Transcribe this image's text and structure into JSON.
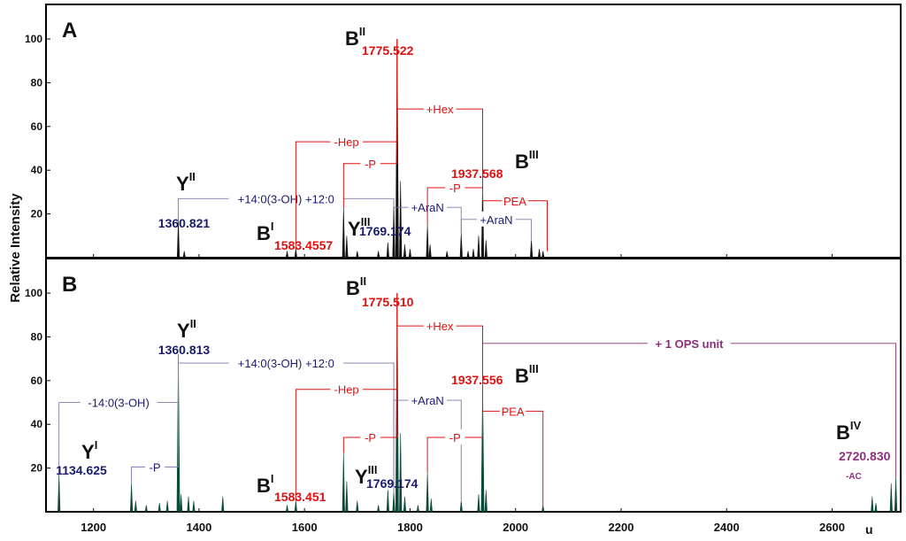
{
  "colors": {
    "navy": "#1a1a6e",
    "red": "#e01010",
    "purple": "#8b2f7a",
    "black": "#111111",
    "green": "#0b4a3a",
    "orange": "#e8792e",
    "bracket_blue": "#7a7ab0"
  },
  "chart_data": [
    {
      "type": "line",
      "panel_label": "A",
      "ylabel": "Relative Intensity",
      "xlabel": "u",
      "xlim": [
        1110,
        2730
      ],
      "ylim": [
        0,
        115
      ],
      "x_ticks": [
        1200,
        1400,
        1600,
        1800,
        2000,
        2200,
        2400,
        2600
      ],
      "y_ticks": [
        20,
        40,
        60,
        80,
        100
      ],
      "peaks": [
        {
          "x": 1360.8,
          "y": 17
        },
        {
          "x": 1372,
          "y": 3
        },
        {
          "x": 1567,
          "y": 3
        },
        {
          "x": 1583.5,
          "y": 4
        },
        {
          "x": 1674,
          "y": 23
        },
        {
          "x": 1680,
          "y": 10
        },
        {
          "x": 1700,
          "y": 3
        },
        {
          "x": 1740,
          "y": 3
        },
        {
          "x": 1758,
          "y": 7
        },
        {
          "x": 1769.2,
          "y": 24
        },
        {
          "x": 1775.5,
          "y": 100
        },
        {
          "x": 1782,
          "y": 35
        },
        {
          "x": 1790,
          "y": 6
        },
        {
          "x": 1800,
          "y": 4
        },
        {
          "x": 1833,
          "y": 15
        },
        {
          "x": 1838,
          "y": 6
        },
        {
          "x": 1870,
          "y": 3
        },
        {
          "x": 1897,
          "y": 11
        },
        {
          "x": 1910,
          "y": 3
        },
        {
          "x": 1920,
          "y": 4
        },
        {
          "x": 1930,
          "y": 10
        },
        {
          "x": 1937.6,
          "y": 35
        },
        {
          "x": 1944,
          "y": 8
        },
        {
          "x": 2030,
          "y": 8
        },
        {
          "x": 2045,
          "y": 4
        },
        {
          "x": 2052,
          "y": 3
        }
      ],
      "peak_labels": [
        {
          "ion": "Y",
          "sup": "II",
          "sub": "",
          "mz": "1360.821"
        },
        {
          "ion": "B",
          "sup": "I",
          "sub": "",
          "mz": "1583.4557"
        },
        {
          "ion": "Y",
          "sup": "III",
          "sub": "",
          "mz": "1769.174"
        },
        {
          "ion": "B",
          "sup": "II",
          "sub": "",
          "mz": "1775.522"
        },
        {
          "ion": "B",
          "sup": "III",
          "sub": "",
          "mz": "1937.568"
        }
      ],
      "brackets": [
        {
          "label": "+14:0(3-OH) +12:0",
          "x1": 1360.8,
          "x2": 1769.2,
          "y": 27,
          "drop1": 17,
          "drop2": 24,
          "color": "navy"
        },
        {
          "label": "+AraN",
          "x1": 1769.2,
          "x2": 1897,
          "y": 23,
          "drop1": 24,
          "drop2": 11,
          "color": "navy"
        },
        {
          "label": "+AraN",
          "x1": 1897,
          "x2": 2030,
          "y": 17.5,
          "drop1": 11,
          "drop2": 8,
          "color": "navy"
        },
        {
          "label": "-Hep",
          "x1": 1583.5,
          "x2": 1775.5,
          "y": 53,
          "drop1": 4,
          "drop2": 100,
          "color": "red"
        },
        {
          "label": "-P",
          "x1": 1674,
          "x2": 1775.5,
          "y": 43,
          "drop1": 23,
          "drop2": 100,
          "color": "red"
        },
        {
          "label": "+Hex",
          "x1": 1775.5,
          "x2": 1937.6,
          "y": 68,
          "drop1": 100,
          "drop2": 35,
          "color": "red"
        },
        {
          "label": "-P",
          "x1": 1833,
          "x2": 1937.6,
          "y": 32,
          "drop1": 15,
          "drop2": 35,
          "color": "red"
        },
        {
          "label": "PEA",
          "x1": 1937.6,
          "x2": 2060,
          "y": 26,
          "drop1": 35,
          "drop2": 3,
          "color": "red"
        }
      ]
    },
    {
      "type": "line",
      "panel_label": "B",
      "ylabel": "Relative Intensity",
      "xlabel": "u",
      "xlim": [
        1110,
        2730
      ],
      "ylim": [
        0,
        115
      ],
      "x_ticks": [
        1200,
        1400,
        1600,
        1800,
        2000,
        2200,
        2400,
        2600
      ],
      "y_ticks": [
        20,
        40,
        60,
        80,
        100
      ],
      "peaks": [
        {
          "x": 1134.6,
          "y": 17
        },
        {
          "x": 1272,
          "y": 13
        },
        {
          "x": 1280,
          "y": 5
        },
        {
          "x": 1300,
          "y": 3
        },
        {
          "x": 1325,
          "y": 4
        },
        {
          "x": 1340,
          "y": 5
        },
        {
          "x": 1360.8,
          "y": 72
        },
        {
          "x": 1366,
          "y": 8
        },
        {
          "x": 1380,
          "y": 7
        },
        {
          "x": 1390,
          "y": 5
        },
        {
          "x": 1445,
          "y": 7
        },
        {
          "x": 1567,
          "y": 3
        },
        {
          "x": 1583.5,
          "y": 5
        },
        {
          "x": 1674,
          "y": 27
        },
        {
          "x": 1680,
          "y": 14
        },
        {
          "x": 1700,
          "y": 5
        },
        {
          "x": 1740,
          "y": 3
        },
        {
          "x": 1758,
          "y": 10
        },
        {
          "x": 1769.2,
          "y": 9
        },
        {
          "x": 1775.5,
          "y": 100
        },
        {
          "x": 1782,
          "y": 36
        },
        {
          "x": 1790,
          "y": 7
        },
        {
          "x": 1815,
          "y": 3
        },
        {
          "x": 1833,
          "y": 18
        },
        {
          "x": 1840,
          "y": 6
        },
        {
          "x": 1897,
          "y": 5
        },
        {
          "x": 1930,
          "y": 8
        },
        {
          "x": 1937.6,
          "y": 57
        },
        {
          "x": 1944,
          "y": 10
        },
        {
          "x": 2052,
          "y": 3
        },
        {
          "x": 2676,
          "y": 7
        },
        {
          "x": 2683,
          "y": 4
        },
        {
          "x": 2712,
          "y": 13
        },
        {
          "x": 2720.8,
          "y": 16
        }
      ],
      "peak_labels": [
        {
          "ion": "Y",
          "sup": "I",
          "sub": "",
          "mz": "1134.625"
        },
        {
          "ion": "Y",
          "sup": "II",
          "sub": "",
          "mz": "1360.813"
        },
        {
          "ion": "B",
          "sup": "I",
          "sub": "",
          "mz": "1583.451"
        },
        {
          "ion": "Y",
          "sup": "III",
          "sub": "",
          "mz": "1769.174"
        },
        {
          "ion": "B",
          "sup": "II",
          "sub": "",
          "mz": "1775.510"
        },
        {
          "ion": "B",
          "sup": "III",
          "sub": "",
          "mz": "1937.556"
        },
        {
          "ion": "B",
          "sup": "IV",
          "sub": "-AC",
          "mz": "2720.830"
        }
      ],
      "brackets": [
        {
          "label": "-14:0(3-OH)",
          "x1": 1134.6,
          "x2": 1360.8,
          "y": 50,
          "drop1": 17,
          "drop2": 72,
          "color": "navy"
        },
        {
          "label": "-P",
          "x1": 1272,
          "x2": 1360.8,
          "y": 20.5,
          "drop1": 13,
          "drop2": 72,
          "color": "navy"
        },
        {
          "label": "+14:0(3-OH) +12:0",
          "x1": 1360.8,
          "x2": 1769.2,
          "y": 68,
          "drop1": 72,
          "drop2": 9,
          "color": "navy"
        },
        {
          "label": "+AraN",
          "x1": 1769.2,
          "x2": 1897,
          "y": 51,
          "drop1": 9,
          "drop2": 5,
          "color": "navy"
        },
        {
          "label": "-Hep",
          "x1": 1583.5,
          "x2": 1775.5,
          "y": 56,
          "drop1": 5,
          "drop2": 100,
          "color": "red"
        },
        {
          "label": "-P",
          "x1": 1674,
          "x2": 1775.5,
          "y": 34,
          "drop1": 27,
          "drop2": 100,
          "color": "red"
        },
        {
          "label": "+Hex",
          "x1": 1775.5,
          "x2": 1937.6,
          "y": 85,
          "drop1": 100,
          "drop2": 57,
          "color": "red"
        },
        {
          "label": "-P",
          "x1": 1833,
          "x2": 1937.6,
          "y": 34,
          "drop1": 18,
          "drop2": 57,
          "color": "red"
        },
        {
          "label": "PEA",
          "x1": 1937.6,
          "x2": 2052,
          "y": 46,
          "drop1": 57,
          "drop2": 3,
          "color": "red"
        },
        {
          "label": "+ 1 OPS unit",
          "x1": 1937.6,
          "x2": 2720.8,
          "y": 77,
          "drop1": 57,
          "drop2": 16,
          "color": "purple"
        }
      ]
    }
  ]
}
